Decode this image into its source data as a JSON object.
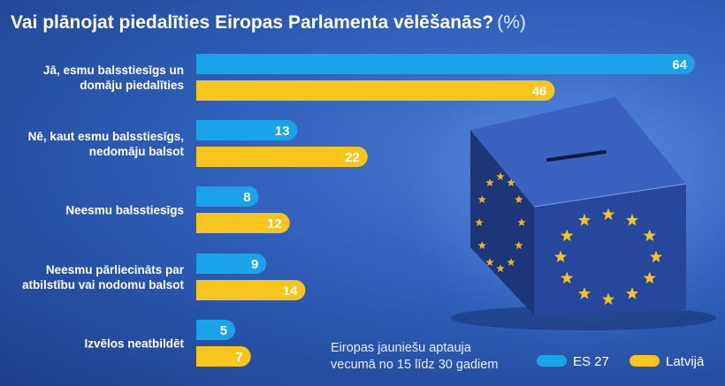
{
  "chart_data": {
    "type": "bar",
    "orientation": "horizontal",
    "title": "Vai plānojat piedalīties Eiropas Parlamenta vēlēšanās?",
    "unit": "(%)",
    "categories": [
      [
        "Jā, esmu balsstiesīgs un",
        "domāju piedalīties"
      ],
      [
        "Nē, kaut esmu balsstiesīgs,",
        "nedomāju balsot"
      ],
      [
        "Neesmu balsstiesīgs"
      ],
      [
        "Neesmu pārliecināts par",
        "atbilstību vai nodomu balsot"
      ],
      [
        "Izvēlos neatbildēt"
      ]
    ],
    "series": [
      {
        "name": "ES 27",
        "color": "#1aa3e8",
        "values": [
          64,
          13,
          8,
          9,
          5
        ]
      },
      {
        "name": "Latvijā",
        "color": "#f7c51e",
        "values": [
          46,
          22,
          12,
          14,
          7
        ]
      }
    ],
    "xlim": [
      0,
      64
    ],
    "grid": false,
    "legend_position": "bottom-right",
    "note": [
      "Eiropas jauniešu aptauja",
      "vecumā no 15 līdz 30 gadiem"
    ]
  },
  "colors": {
    "background": "#2f5fb8",
    "box_front": "#26479b",
    "box_side": "#1c3679",
    "box_top": "#3b62be",
    "stars": "#f7c51e"
  },
  "illustration": "ballot-box-icon"
}
